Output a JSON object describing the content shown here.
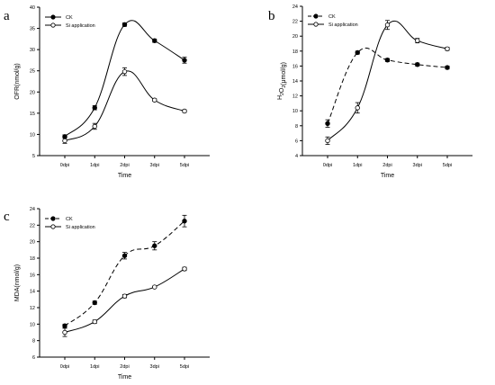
{
  "chart_data": [
    {
      "type": "line",
      "panel_label": "a",
      "title": "",
      "xlabel": "Time",
      "ylabel": "OFR(nmol/g)",
      "categories": [
        "0dpi",
        "1dpi",
        "2dpi",
        "3dpi",
        "5dpi"
      ],
      "ylim": [
        5,
        40
      ],
      "yticks": [
        5,
        10,
        15,
        20,
        25,
        30,
        35,
        40
      ],
      "legend_position": "top-left",
      "series": [
        {
          "name": "CK",
          "marker": "filled",
          "line": "solid",
          "values": [
            9.5,
            16.3,
            35.9,
            32.1,
            27.5
          ],
          "errors": [
            0.4,
            0.5,
            0.4,
            0.4,
            0.7
          ]
        },
        {
          "name": "Si application",
          "marker": "open",
          "line": "solid",
          "values": [
            8.5,
            11.9,
            24.8,
            18.1,
            15.5
          ],
          "errors": [
            0.6,
            0.7,
            0.9,
            0.3,
            0.3
          ]
        }
      ]
    },
    {
      "type": "line",
      "panel_label": "b",
      "title": "",
      "xlabel": "Time",
      "ylabel_main": "H",
      "ylabel_sub1": "2",
      "ylabel_mid": "O",
      "ylabel_sub2": "2",
      "ylabel_tail": "(μmol/g)",
      "categories": [
        "0dpi",
        "1dpi",
        "2dpi",
        "3dpi",
        "5dpi"
      ],
      "ylim": [
        4,
        24
      ],
      "yticks": [
        4,
        6,
        8,
        10,
        12,
        14,
        16,
        18,
        20,
        22,
        24
      ],
      "legend_position": "top-left",
      "series": [
        {
          "name": "CK",
          "marker": "filled",
          "line": "dashed",
          "values": [
            8.3,
            17.8,
            16.8,
            16.2,
            15.8
          ],
          "errors": [
            0.5,
            0.2,
            0.2,
            0.2,
            0.2
          ]
        },
        {
          "name": "Si application",
          "marker": "open",
          "line": "solid",
          "values": [
            6.0,
            10.4,
            21.5,
            19.4,
            18.3
          ],
          "errors": [
            0.5,
            0.7,
            0.6,
            0.3,
            0.2
          ]
        }
      ]
    },
    {
      "type": "line",
      "panel_label": "c",
      "title": "",
      "xlabel": "Time",
      "ylabel": "MDA(nmol/g)",
      "categories": [
        "0dpi",
        "1dpi",
        "2dpi",
        "3dpi",
        "5dpi"
      ],
      "ylim": [
        6,
        24
      ],
      "yticks": [
        6,
        8,
        10,
        12,
        14,
        16,
        18,
        20,
        22,
        24
      ],
      "legend_position": "top-left",
      "series": [
        {
          "name": "CK",
          "marker": "filled",
          "line": "dashed",
          "values": [
            9.8,
            12.6,
            18.3,
            19.5,
            22.5
          ],
          "errors": [
            0.2,
            0.2,
            0.4,
            0.5,
            0.7
          ]
        },
        {
          "name": "Si application",
          "marker": "open",
          "line": "solid",
          "values": [
            9.0,
            10.3,
            13.4,
            14.5,
            16.7
          ],
          "errors": [
            0.5,
            0.2,
            0.2,
            0.1,
            0.2
          ]
        }
      ]
    }
  ]
}
